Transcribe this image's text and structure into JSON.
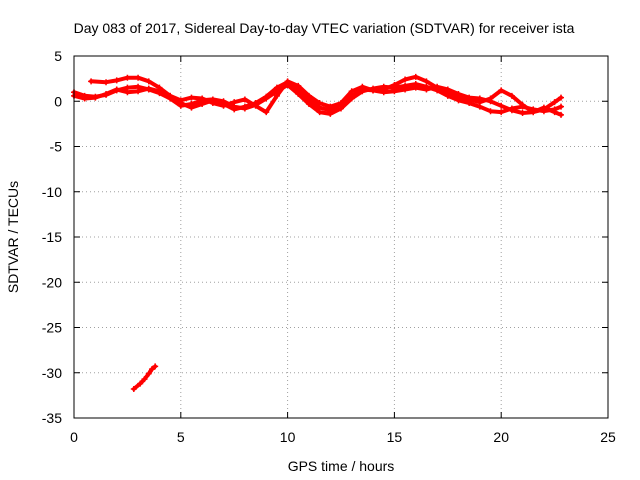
{
  "chart_data": {
    "type": "scatter",
    "title": "Day 083 of 2017, Sidereal Day-to-day VTEC variation (SDTVAR) for receiver ista",
    "xlabel": "GPS time / hours",
    "ylabel": "SDTVAR / TECUs",
    "xlim": [
      0,
      25
    ],
    "ylim": [
      -35,
      5
    ],
    "xticks": [
      0,
      5,
      10,
      15,
      20,
      25
    ],
    "yticks": [
      5,
      0,
      -5,
      -10,
      -15,
      -20,
      -25,
      -30,
      -35
    ],
    "grid": true,
    "series_color": "#ff0000",
    "series": [
      {
        "name": "track-1",
        "points": [
          [
            0.0,
            1.0
          ],
          [
            0.5,
            0.6
          ],
          [
            1.0,
            0.5
          ],
          [
            1.5,
            0.7
          ],
          [
            2.0,
            1.2
          ],
          [
            2.5,
            1.5
          ],
          [
            3.0,
            1.6
          ],
          [
            3.5,
            1.3
          ],
          [
            4.0,
            0.9
          ],
          [
            4.5,
            0.3
          ],
          [
            5.0,
            -0.5
          ],
          [
            5.5,
            -0.3
          ],
          [
            6.0,
            0.1
          ],
          [
            6.5,
            0.2
          ],
          [
            7.0,
            0.0
          ],
          [
            7.5,
            -0.6
          ],
          [
            8.0,
            -0.8
          ],
          [
            8.5,
            -0.4
          ],
          [
            9.0,
            0.3
          ],
          [
            9.5,
            1.1
          ],
          [
            10.0,
            1.8
          ],
          [
            10.5,
            0.8
          ],
          [
            11.0,
            -0.3
          ],
          [
            11.5,
            -1.2
          ],
          [
            12.0,
            -1.4
          ],
          [
            12.5,
            -0.8
          ],
          [
            13.0,
            0.3
          ],
          [
            13.5,
            1.1
          ],
          [
            14.0,
            1.4
          ],
          [
            14.5,
            1.6
          ],
          [
            15.0,
            1.5
          ],
          [
            15.5,
            1.7
          ],
          [
            16.0,
            1.9
          ],
          [
            16.5,
            1.6
          ],
          [
            17.0,
            1.2
          ],
          [
            17.5,
            0.6
          ],
          [
            18.0,
            0.1
          ],
          [
            18.5,
            -0.2
          ],
          [
            19.0,
            -0.6
          ],
          [
            19.5,
            -1.1
          ],
          [
            20.0,
            -1.2
          ],
          [
            20.5,
            -0.8
          ],
          [
            21.0,
            -0.6
          ],
          [
            21.5,
            -0.9
          ],
          [
            22.0,
            -1.1
          ],
          [
            22.5,
            -0.9
          ],
          [
            22.8,
            -0.6
          ]
        ]
      },
      {
        "name": "track-2",
        "points": [
          [
            0.0,
            0.6
          ],
          [
            0.5,
            0.3
          ],
          [
            1.0,
            0.4
          ],
          [
            1.5,
            0.8
          ],
          [
            2.0,
            1.3
          ],
          [
            2.5,
            1.0
          ],
          [
            3.0,
            1.1
          ],
          [
            3.5,
            1.4
          ],
          [
            4.0,
            1.1
          ],
          [
            4.5,
            0.6
          ],
          [
            5.0,
            -0.2
          ],
          [
            5.5,
            -0.7
          ],
          [
            6.0,
            -0.3
          ],
          [
            6.5,
            0.1
          ],
          [
            7.0,
            -0.3
          ],
          [
            7.5,
            -0.9
          ],
          [
            8.0,
            -0.6
          ],
          [
            8.5,
            -0.2
          ],
          [
            9.0,
            0.5
          ],
          [
            9.5,
            1.5
          ],
          [
            10.0,
            2.1
          ],
          [
            10.5,
            1.3
          ],
          [
            11.0,
            0.2
          ],
          [
            11.5,
            -0.7
          ],
          [
            12.0,
            -1.0
          ],
          [
            12.5,
            -0.3
          ],
          [
            13.0,
            0.6
          ],
          [
            13.5,
            1.3
          ],
          [
            14.0,
            1.2
          ],
          [
            14.5,
            1.3
          ],
          [
            15.0,
            1.8
          ],
          [
            15.5,
            2.4
          ],
          [
            16.0,
            2.7
          ],
          [
            16.5,
            2.2
          ],
          [
            17.0,
            1.5
          ],
          [
            17.5,
            1.0
          ],
          [
            18.0,
            0.5
          ],
          [
            18.5,
            0.2
          ],
          [
            19.0,
            -0.1
          ],
          [
            19.5,
            0.3
          ],
          [
            20.0,
            1.2
          ],
          [
            20.5,
            0.6
          ],
          [
            21.0,
            -0.4
          ],
          [
            21.5,
            -1.2
          ],
          [
            22.0,
            -0.9
          ],
          [
            22.5,
            -0.1
          ],
          [
            22.8,
            0.4
          ]
        ]
      },
      {
        "name": "track-3",
        "points": [
          [
            0.8,
            2.2
          ],
          [
            1.5,
            2.1
          ],
          [
            2.0,
            2.3
          ],
          [
            2.5,
            2.6
          ],
          [
            3.0,
            2.6
          ],
          [
            3.5,
            2.2
          ],
          [
            4.0,
            1.5
          ],
          [
            4.5,
            0.6
          ],
          [
            5.0,
            0.1
          ],
          [
            5.5,
            0.4
          ],
          [
            6.0,
            0.3
          ],
          [
            6.5,
            -0.2
          ],
          [
            7.0,
            -0.5
          ],
          [
            7.5,
            -0.1
          ],
          [
            8.0,
            0.2
          ],
          [
            8.5,
            -0.5
          ],
          [
            9.0,
            -1.2
          ],
          [
            9.5,
            0.6
          ],
          [
            10.0,
            2.2
          ],
          [
            10.5,
            1.7
          ],
          [
            11.0,
            0.6
          ],
          [
            11.5,
            -0.2
          ],
          [
            12.0,
            -0.6
          ],
          [
            12.5,
            -0.2
          ],
          [
            13.0,
            1.1
          ],
          [
            13.5,
            1.6
          ],
          [
            14.0,
            1.2
          ],
          [
            14.5,
            1.0
          ],
          [
            15.0,
            1.1
          ],
          [
            15.5,
            1.3
          ],
          [
            16.0,
            1.5
          ],
          [
            16.5,
            1.3
          ],
          [
            17.0,
            1.6
          ],
          [
            17.5,
            1.3
          ],
          [
            18.0,
            0.8
          ],
          [
            18.5,
            0.4
          ],
          [
            19.0,
            0.3
          ],
          [
            19.5,
            0.0
          ],
          [
            20.0,
            -0.5
          ],
          [
            20.5,
            -1.0
          ],
          [
            21.0,
            -1.3
          ],
          [
            21.5,
            -1.2
          ],
          [
            22.0,
            -0.7
          ],
          [
            22.5,
            -1.2
          ],
          [
            22.8,
            -1.5
          ]
        ]
      },
      {
        "name": "track-4",
        "points": [
          [
            2.8,
            -31.8
          ],
          [
            3.1,
            -31.2
          ],
          [
            3.3,
            -30.7
          ],
          [
            3.5,
            -30.1
          ],
          [
            3.65,
            -29.6
          ],
          [
            3.8,
            -29.3
          ]
        ]
      }
    ]
  }
}
